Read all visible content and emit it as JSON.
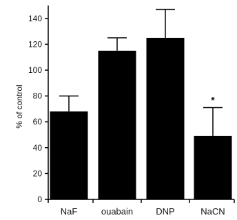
{
  "chart_data": {
    "type": "bar",
    "categories": [
      "NaF",
      "ouabain",
      "DNP",
      "NaCN"
    ],
    "values": [
      68,
      115,
      125,
      49
    ],
    "error_plus": [
      12,
      10,
      22,
      22
    ],
    "annotations": [
      "",
      "",
      "",
      "*"
    ],
    "ylabel": "% of control",
    "xlabel": "",
    "ylim": [
      0,
      150
    ],
    "yticks": [
      0,
      20,
      40,
      60,
      80,
      100,
      120,
      140
    ],
    "grid": false,
    "bar_color": "#000000"
  }
}
